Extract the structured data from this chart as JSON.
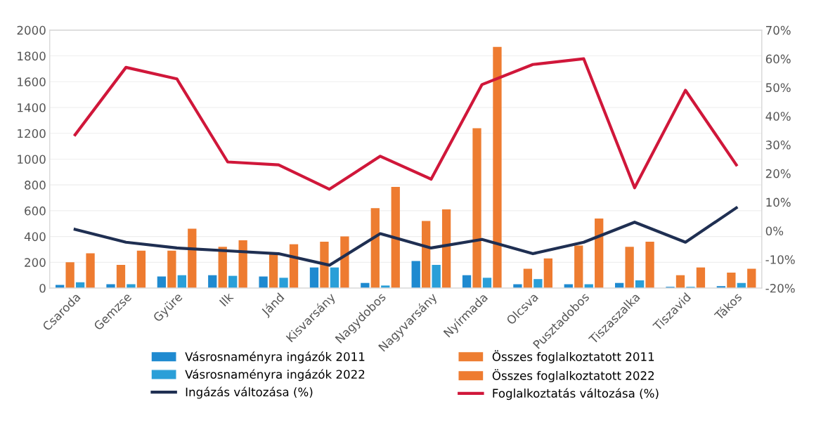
{
  "chart_data": {
    "type": "bar",
    "categories": [
      "Csaroda",
      "Gemzse",
      "Gyüre",
      "Ilk",
      "Jánd",
      "Kisvarsány",
      "Nagydobos",
      "Nagyvarsány",
      "Nyírmada",
      "Olcsva",
      "Pusztadobos",
      "Tiszaszalka",
      "Tiszavid",
      "Tákos"
    ],
    "series": [
      {
        "name": "Vásrosnaményra ingázók 2011",
        "color": "#1f8ad0",
        "values": [
          25,
          30,
          90,
          100,
          90,
          160,
          40,
          210,
          100,
          30,
          30,
          40,
          10,
          15
        ]
      },
      {
        "name": "Összes foglalkoztatott 2011",
        "color": "#ed7d31",
        "values": [
          200,
          180,
          290,
          320,
          270,
          360,
          620,
          520,
          1240,
          150,
          330,
          320,
          100,
          120
        ]
      },
      {
        "name": "Vásrosnaményra ingázók 2022",
        "color": "#2a9fd8",
        "values": [
          45,
          30,
          100,
          95,
          80,
          160,
          20,
          180,
          80,
          70,
          30,
          60,
          10,
          40
        ]
      },
      {
        "name": "Összes foglalkoztatott 2022",
        "color": "#ee7b30",
        "values": [
          270,
          290,
          460,
          370,
          340,
          400,
          785,
          610,
          1870,
          230,
          540,
          360,
          160,
          150
        ]
      },
      {
        "name": "Ingázás változása (%)",
        "type": "line",
        "axis": "y2",
        "color": "#1f2f52",
        "values": [
          0.5,
          -4,
          -6,
          -7,
          -8,
          -12,
          -1,
          -6,
          -3,
          -8,
          -4,
          3,
          -4,
          8
        ]
      },
      {
        "name": "Foglalkoztatás változása (%)",
        "type": "line",
        "axis": "y2",
        "color": "#d0173a",
        "values": [
          33.5,
          57,
          53,
          24,
          23,
          14.5,
          26,
          18,
          51,
          58,
          60,
          15,
          49,
          23
        ]
      }
    ],
    "ylim": [
      0,
      2000
    ],
    "yticks": [
      0,
      200,
      400,
      600,
      800,
      1000,
      1200,
      1400,
      1600,
      1800,
      2000
    ],
    "y2lim": [
      -20,
      70
    ],
    "y2ticks": [
      {
        "value": -20,
        "label": "-20%"
      },
      {
        "value": -10,
        "label": "-10%"
      },
      {
        "value": 0,
        "label": "0%"
      },
      {
        "value": 10,
        "label": "10%"
      },
      {
        "value": 20,
        "label": "20%"
      },
      {
        "value": 30,
        "label": "30%"
      },
      {
        "value": 40,
        "label": "40%"
      },
      {
        "value": 50,
        "label": "50%"
      },
      {
        "value": 60,
        "label": "60%"
      },
      {
        "value": 70,
        "label": "70%"
      }
    ],
    "grid": "y",
    "legend": "bottom",
    "marker": "none",
    "line_style": "solid"
  }
}
